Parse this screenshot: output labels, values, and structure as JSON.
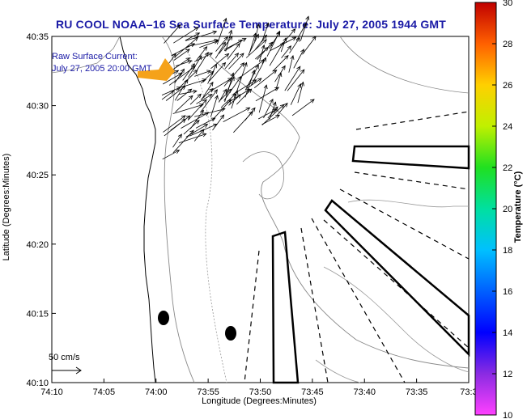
{
  "chart_data": {
    "type": "map",
    "title": "RU COOL  NOAA–16  Sea Surface Temperature:  July 27, 2005 1944 GMT",
    "xlabel": "Longitude (Degrees:Minutes)",
    "ylabel": "Latitude (Degrees:Minutes)",
    "colorbar_label": "Temperature (°C)",
    "colorbar_range": [
      10,
      30
    ],
    "colorbar_ticks": [
      "10",
      "12",
      "14",
      "16",
      "18",
      "20",
      "22",
      "24",
      "26",
      "28",
      "30"
    ],
    "x_ticks": [
      "74:10",
      "74:05",
      "74:00",
      "73:55",
      "73:50",
      "73:45",
      "73:40",
      "73:35",
      "73:3"
    ],
    "y_ticks": [
      "40:10",
      "40:15",
      "40:20",
      "40:25",
      "40:30",
      "40:35"
    ],
    "xlim_minutes": [
      -74.1667,
      -73.5
    ],
    "ylim_minutes": [
      40.1667,
      40.5833
    ],
    "annotation_line1": "Raw Surface Current:",
    "annotation_line2": "July 27, 2005 20:00 GMT",
    "scale_label": "50 cm/s",
    "colors": {
      "title": "#1a1aa6",
      "annotation": "#1a1aa6",
      "arrow_marker": "#f5a21a"
    }
  }
}
